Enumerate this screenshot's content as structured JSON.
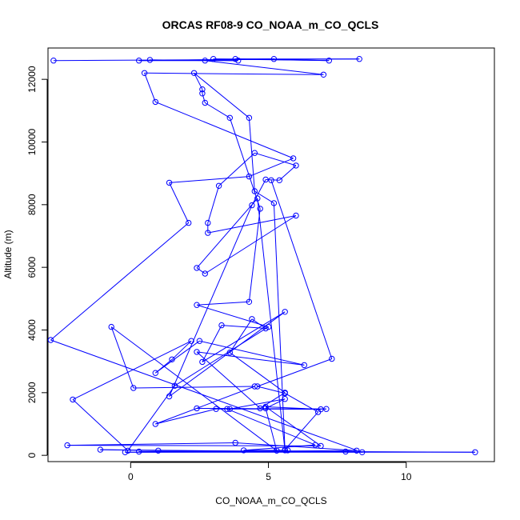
{
  "chart_data": {
    "type": "line",
    "title": "ORCAS RF08-9 CO_NOAA_m_CO_QCLS",
    "xlabel": "CO_NOAA_m_CO_QCLS",
    "ylabel": "Altitude (m)",
    "xlim": [
      -3.0,
      13.2
    ],
    "ylim": [
      -200,
      13000
    ],
    "xticks": [
      0,
      5,
      10
    ],
    "yticks": [
      0,
      2000,
      4000,
      6000,
      8000,
      10000,
      12000
    ],
    "grid": false,
    "legend": "none",
    "series_color": "#0000ff",
    "points": [
      [
        -2.8,
        12600
      ],
      [
        8.3,
        12650
      ],
      [
        3.0,
        12650
      ],
      [
        7.2,
        12600
      ],
      [
        3.8,
        12650
      ],
      [
        5.2,
        12650
      ],
      [
        0.3,
        12600
      ],
      [
        3.9,
        12600
      ],
      [
        0.7,
        12620
      ],
      [
        2.7,
        12600
      ],
      [
        7.0,
        12150
      ],
      [
        0.5,
        12200
      ],
      [
        0.9,
        11280
      ],
      [
        5.9,
        9480
      ],
      [
        4.3,
        8900
      ],
      [
        1.4,
        8700
      ],
      [
        2.1,
        7420
      ],
      [
        -2.9,
        3680
      ],
      [
        8.4,
        100
      ],
      [
        -1.1,
        180
      ],
      [
        1.0,
        150
      ],
      [
        12.5,
        100
      ],
      [
        -0.2,
        100
      ],
      [
        7.8,
        120
      ],
      [
        0.3,
        120
      ],
      [
        8.2,
        150
      ],
      [
        3.8,
        400
      ],
      [
        -2.3,
        320
      ],
      [
        6.9,
        300
      ],
      [
        4.9,
        1550
      ],
      [
        6.9,
        1470
      ],
      [
        2.4,
        1500
      ],
      [
        7.1,
        1480
      ],
      [
        3.1,
        1480
      ],
      [
        0.9,
        1000
      ],
      [
        4.5,
        2200
      ],
      [
        0.1,
        2150
      ],
      [
        -0.7,
        4100
      ],
      [
        5.3,
        150
      ],
      [
        4.9,
        1500
      ],
      [
        5.6,
        1800
      ],
      [
        3.6,
        1480
      ],
      [
        3.5,
        1480
      ],
      [
        6.7,
        330
      ],
      [
        4.1,
        160
      ],
      [
        5.7,
        160
      ],
      [
        5.6,
        160
      ],
      [
        4.6,
        8200
      ],
      [
        2.4,
        5980
      ],
      [
        2.7,
        5800
      ],
      [
        6.0,
        7650
      ],
      [
        2.8,
        7100
      ],
      [
        2.8,
        7420
      ],
      [
        3.2,
        8600
      ],
      [
        4.5,
        9650
      ],
      [
        6.0,
        9250
      ],
      [
        5.4,
        8780
      ],
      [
        4.9,
        8800
      ],
      [
        4.4,
        7980
      ],
      [
        1.4,
        1880
      ],
      [
        5.6,
        4580
      ],
      [
        2.6,
        2980
      ],
      [
        3.3,
        4150
      ],
      [
        4.9,
        4050
      ],
      [
        4.4,
        4350
      ],
      [
        3.6,
        3280
      ],
      [
        5.6,
        2000
      ],
      [
        4.7,
        1500
      ],
      [
        2.4,
        3300
      ],
      [
        6.3,
        2880
      ],
      [
        2.5,
        3650
      ],
      [
        0.9,
        2630
      ],
      [
        1.5,
        3060
      ],
      [
        2.2,
        3650
      ],
      [
        -2.1,
        1780
      ],
      [
        -0.1,
        150
      ],
      [
        1.6,
        2220
      ],
      [
        5.0,
        4100
      ],
      [
        2.4,
        4800
      ],
      [
        4.3,
        4900
      ],
      [
        4.7,
        7870
      ],
      [
        3.6,
        10770
      ],
      [
        2.7,
        11250
      ],
      [
        2.6,
        11550
      ],
      [
        2.6,
        11680
      ],
      [
        2.3,
        12200
      ],
      [
        4.3,
        10770
      ],
      [
        4.5,
        8430
      ],
      [
        5.2,
        8050
      ],
      [
        5.6,
        180
      ],
      [
        6.8,
        1380
      ],
      [
        5.6,
        1980
      ],
      [
        4.6,
        2200
      ],
      [
        7.3,
        3080
      ],
      [
        5.1,
        8780
      ]
    ]
  }
}
